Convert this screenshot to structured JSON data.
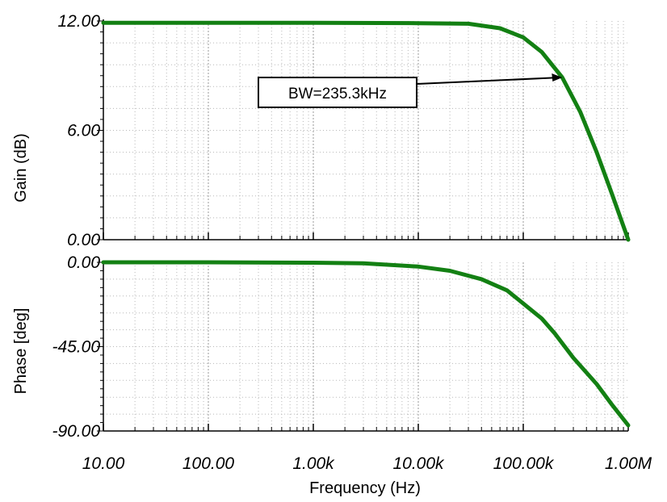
{
  "chart_data": [
    {
      "type": "line",
      "ylabel": "Gain (dB)",
      "xscale": "log",
      "xlim": [
        10,
        1000000
      ],
      "ylim": [
        0,
        12
      ],
      "yticks": [
        0,
        6,
        12
      ],
      "ytick_labels": [
        "0.00",
        "6.00",
        "12.00"
      ],
      "grid": true,
      "color": "#138013",
      "annotation": {
        "text": "BW=235.3kHz",
        "x": 235300,
        "y": 8.9
      },
      "series": [
        {
          "x": [
            10,
            100,
            1000,
            10000,
            30000,
            60000,
            100000,
            150000,
            235300,
            350000,
            500000,
            700000,
            1000000
          ],
          "y": [
            11.9,
            11.9,
            11.9,
            11.88,
            11.85,
            11.6,
            11.1,
            10.3,
            8.9,
            7.0,
            4.8,
            2.5,
            0.0
          ]
        }
      ]
    },
    {
      "type": "line",
      "xlabel": "Frequency (Hz)",
      "ylabel": "Phase [deg]",
      "xscale": "log",
      "xlim": [
        10,
        1000000
      ],
      "ylim": [
        -90,
        0
      ],
      "yticks": [
        -90,
        -45,
        0
      ],
      "ytick_labels": [
        "-90.00",
        "-45.00",
        "0.00"
      ],
      "xticks": [
        10,
        100,
        1000,
        10000,
        100000,
        1000000
      ],
      "xtick_labels": [
        "10.00",
        "100.00",
        "1.00k",
        "10.00k",
        "100.00k",
        "1.00M"
      ],
      "grid": true,
      "color": "#138013",
      "series": [
        {
          "x": [
            10,
            100,
            1000,
            3000,
            10000,
            20000,
            40000,
            70000,
            100000,
            150000,
            200000,
            300000,
            500000,
            700000,
            1000000
          ],
          "y": [
            0,
            0,
            -0.2,
            -0.5,
            -2.3,
            -4.5,
            -9,
            -15,
            -22,
            -30,
            -38,
            -51,
            -65,
            -76,
            -87
          ]
        }
      ]
    }
  ]
}
